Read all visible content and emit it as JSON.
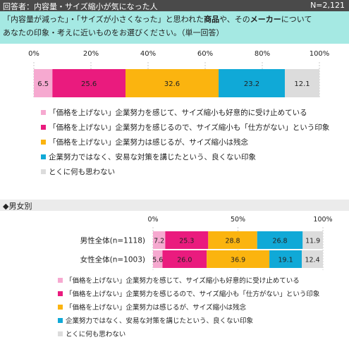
{
  "header": {
    "title": "回答者：内容量・サイズ縮小が気になった人",
    "n": "N=2,121"
  },
  "question": {
    "line1_a": "「内容量が減った」・「サイズが小さくなった」と思われた",
    "line1_b": "商品",
    "line1_c": "や、その",
    "line1_d": "メーカー",
    "line1_e": "について",
    "line2": "あなたの印象・考えに近いものをお選びください。（単一回答）"
  },
  "section2_title": "◆男女別",
  "chart_data": [
    {
      "type": "bar",
      "orientation": "horizontal-stacked-100",
      "xlim": [
        0,
        100
      ],
      "ticks": [
        "0%",
        "20%",
        "40%",
        "60%",
        "80%",
        "100%"
      ],
      "categories": [
        ""
      ],
      "series": [
        {
          "name": "「価格を上げない」企業努力を感じて、サイズ縮小も好意的に受け止めている",
          "color": "#f6a9d0",
          "values": [
            6.5
          ]
        },
        {
          "name": "「価格を上げない」企業努力を感じるので、サイズ縮小も「仕方がない」という印象",
          "color": "#ea1b7e",
          "values": [
            25.6
          ]
        },
        {
          "name": "「価格を上げない」企業努力は感じるが、サイズ縮小は残念",
          "color": "#fbb40f",
          "values": [
            32.6
          ]
        },
        {
          "name": "企業努力ではなく、安易な対策を講じたという、良くない印象",
          "color": "#10a9d7",
          "values": [
            23.2
          ]
        },
        {
          "name": "とくに何も思わない",
          "color": "#dcdcdc",
          "values": [
            12.1
          ]
        }
      ],
      "value_labels": [
        [
          "6.5",
          "25.6",
          "32.6",
          "23.2",
          "12.1"
        ]
      ]
    },
    {
      "type": "bar",
      "orientation": "horizontal-stacked-100",
      "xlim": [
        0,
        100
      ],
      "ticks": [
        "0%",
        "50%",
        "100%"
      ],
      "categories": [
        "男性全体(n=1118)",
        "女性全体(n=1003)"
      ],
      "series": [
        {
          "name": "「価格を上げない」企業努力を感じて、サイズ縮小も好意的に受け止めている",
          "color": "#f6a9d0",
          "values": [
            7.2,
            5.6
          ]
        },
        {
          "name": "「価格を上げない」企業努力を感じるので、サイズ縮小も「仕方がない」という印象",
          "color": "#ea1b7e",
          "values": [
            25.3,
            26.0
          ]
        },
        {
          "name": "「価格を上げない」企業努力は感じるが、サイズ縮小は残念",
          "color": "#fbb40f",
          "values": [
            28.8,
            36.9
          ]
        },
        {
          "name": "企業努力ではなく、安易な対策を講じたという、良くない印象",
          "color": "#10a9d7",
          "values": [
            26.8,
            19.1
          ]
        },
        {
          "name": "とくに何も思わない",
          "color": "#dcdcdc",
          "values": [
            11.9,
            12.4
          ]
        }
      ],
      "value_labels": [
        [
          "7.2",
          "25.3",
          "28.8",
          "26.8",
          "11.9"
        ],
        [
          "5.6",
          "26.0",
          "36.9",
          "19.1",
          "12.4"
        ]
      ]
    }
  ]
}
